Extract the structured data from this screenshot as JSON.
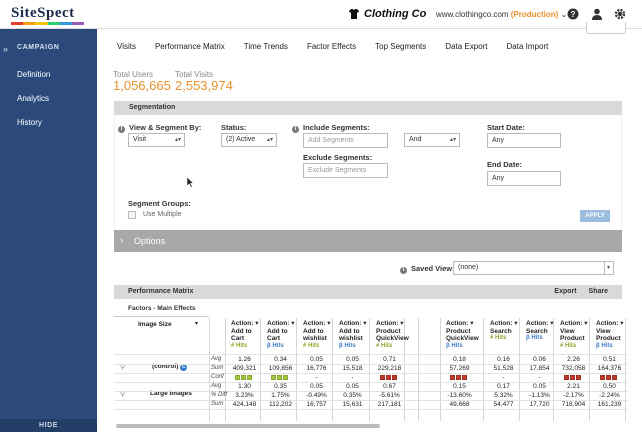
{
  "header": {
    "logo": "SiteSpect",
    "logo_colors": [
      "#e03c31",
      "#f39c12",
      "#f1c40f",
      "#2ecc71",
      "#3498db",
      "#9b59b6"
    ],
    "brand": "Clothing Co",
    "brand_icon": "shirt-icon",
    "site": "www.clothingco.com",
    "env": "(Production)",
    "icons": [
      "help-icon",
      "user-icon",
      "settings-icon"
    ]
  },
  "sidebar": {
    "title": "CAMPAIGN",
    "items": [
      {
        "label": "Definition"
      },
      {
        "label": "Analytics"
      },
      {
        "label": "History"
      }
    ],
    "hide": "HIDE",
    "bg": "#2b4a7b"
  },
  "tabs": [
    "Visits",
    "Performance Matrix",
    "Time Trends",
    "Factor Effects",
    "Top Segments",
    "Data Export",
    "Data Import"
  ],
  "stats": {
    "users_label": "Total Users",
    "users_value": "1,056,665",
    "visits_label": "Total Visits",
    "visits_value": "2,553,974",
    "accent": "#e8912d"
  },
  "segmentation": {
    "title": "Segmentation",
    "view_label": "View & Segment By:",
    "view_value": "Visit",
    "status_label": "Status:",
    "status_value": "(2) Active",
    "include_label": "Include Segments:",
    "include_placeholder": "Add Segments",
    "logic_value": "And",
    "exclude_label": "Exclude Segments:",
    "exclude_placeholder": "Exclude Segments",
    "start_label": "Start Date:",
    "start_value": "Any",
    "end_label": "End Date:",
    "end_value": "Any",
    "groups_label": "Segment Groups:",
    "use_multiple": "Use Multiple",
    "apply": "APPLY"
  },
  "variations": {
    "label": "Options"
  },
  "saved_view": {
    "label": "Saved View:",
    "value": "(none)"
  },
  "matrix": {
    "title": "Performance Matrix",
    "export": "Export",
    "share": "Share",
    "factors_title": "Factors - Main Effects",
    "factor_name": "Image Size",
    "columns": [
      {
        "l1": "Action:",
        "l2": "Add to",
        "l3": "Cart",
        "hits": "# Hits"
      },
      {
        "l1": "Action:",
        "l2": "Add to",
        "l3": "Cart",
        "hits": "β Hits"
      },
      {
        "l1": "Action:",
        "l2": "Add to",
        "l3": "wishlist",
        "hits": "# Hits"
      },
      {
        "l1": "Action:",
        "l2": "Add to",
        "l3": "wishlist",
        "hits": "β Hits"
      },
      {
        "l1": "Action:",
        "l2": "Product",
        "l3": "QuickView",
        "hits": "# Hits"
      },
      {
        "l1": "Action:",
        "l2": "Product",
        "l3": "QuickView",
        "hits": "β Hits"
      },
      {
        "l1": "Action:",
        "l2": "Search",
        "l3": "",
        "hits": "# Hits"
      },
      {
        "l1": "Action:",
        "l2": "Search",
        "l3": "",
        "hits": "β Hits"
      },
      {
        "l1": "Action:",
        "l2": "View",
        "l3": "Product",
        "hits": "# Hits"
      },
      {
        "l1": "Action:",
        "l2": "View",
        "l3": "Product",
        "hits": "β Hits"
      }
    ],
    "control": {
      "name": "(control)",
      "badge": "C",
      "avg": [
        "1.26",
        "0.34",
        "0.05",
        "0.05",
        "0.71",
        "0.18",
        "0.16",
        "0.06",
        "2.26",
        "0.51"
      ],
      "sum": [
        "409,321",
        "109,856",
        "16,776",
        "15,518",
        "229,218",
        "57,269",
        "51,528",
        "17,854",
        "732,058",
        "164,376"
      ]
    },
    "large": {
      "name": "Large Images",
      "conf": [
        "green",
        "green",
        "-",
        "-",
        "red",
        "red",
        "-",
        "-",
        "red",
        "red"
      ],
      "avg": [
        "1.30",
        "0.35",
        "0.05",
        "0.05",
        "0.67",
        "0.15",
        "0.17",
        "0.05",
        "2.21",
        "0.50"
      ],
      "diff": [
        "3.23%",
        "1.75%",
        "-0.49%",
        "0.35%",
        "-5.61%",
        "-13.60%",
        "5.32%",
        "-1.13%",
        "-2.17%",
        "-2.24%"
      ],
      "sum": [
        "424,148",
        "112,202",
        "16,757",
        "15,631",
        "217,181",
        "49,668",
        "54,477",
        "17,720",
        "718,904",
        "161,239"
      ]
    },
    "row_labels": {
      "avg": "Avg",
      "sum": "Sum",
      "conf": "Conf",
      "diff": "% Diff"
    },
    "conf_colors": {
      "green": "#a4c639",
      "red": "#c0392b"
    }
  }
}
